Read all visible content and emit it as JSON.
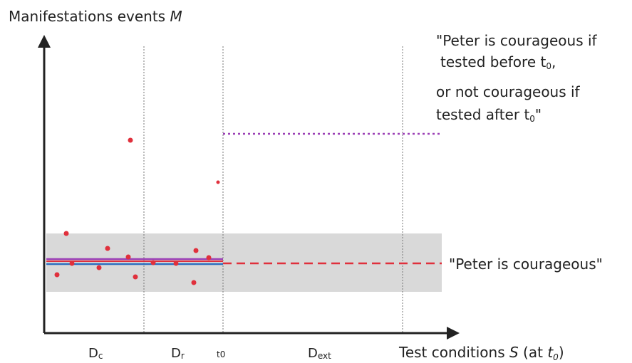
{
  "y_axis": {
    "label": "Manifestations events ",
    "symbol": "M"
  },
  "x_axis": {
    "label": "Test conditions ",
    "symbol": "S",
    "open": " (at ",
    "t": "t",
    "sub": "0",
    "close": ")"
  },
  "regions": [
    {
      "label": "D",
      "sub": "c"
    },
    {
      "label": "D",
      "sub": "r"
    },
    {
      "label": "t",
      "sub": "0"
    },
    {
      "label": "D",
      "sub": "ext"
    }
  ],
  "annotations": {
    "conditional": {
      "line1": "\"Peter is courageous if",
      "line2a": "tested before t",
      "line2sub": "0",
      "line2b": ",",
      "line3": "or not courageous if",
      "line4a": "tested after t",
      "line4sub": "0",
      "line4b": "\""
    },
    "constant": "\"Peter is courageous\""
  }
}
